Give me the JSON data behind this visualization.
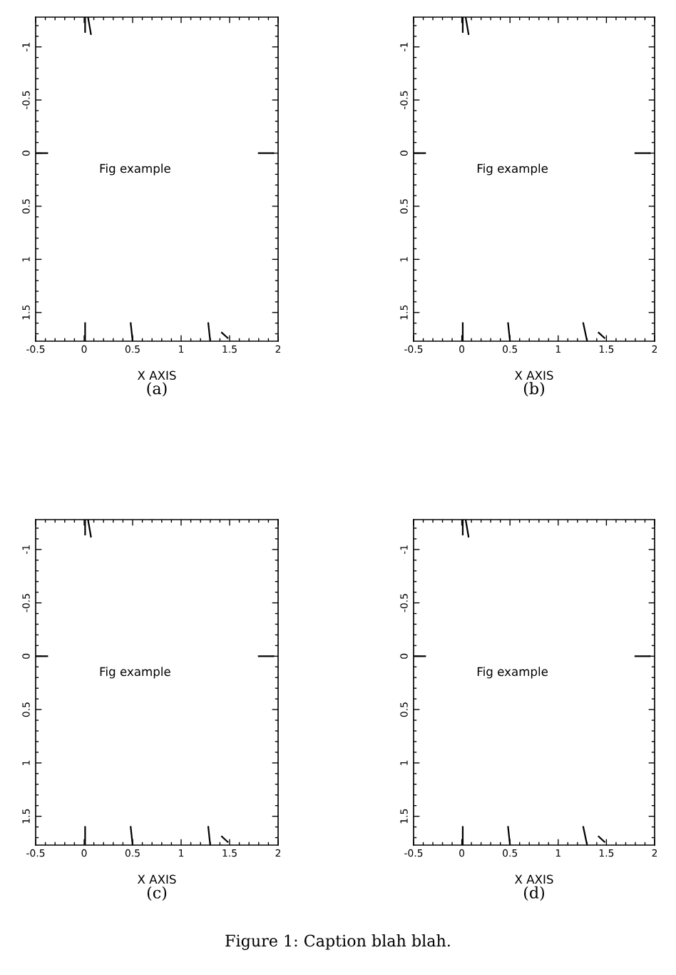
{
  "chart_data": [
    {
      "type": "line",
      "title": "(a)",
      "xlabel": "X AXIS",
      "annotations": [
        "Fig example"
      ],
      "xlim": [
        -0.5,
        2
      ],
      "ylim": [
        1.77,
        -1.28
      ],
      "xticks": [
        -0.5,
        0,
        0.5,
        1,
        1.5,
        2
      ],
      "yticks": [
        -1,
        -0.5,
        0,
        0.5,
        1,
        1.5
      ],
      "grid": false,
      "legend": false,
      "series": [
        {
          "color": "#000000",
          "x": [
            0.01,
            0.01
          ],
          "values": [
            -1.28,
            -1.14
          ]
        },
        {
          "color": "#000000",
          "x": [
            0.04,
            0.07
          ],
          "values": [
            -1.28,
            -1.12
          ]
        },
        {
          "color": "#000000",
          "x": [
            -0.5,
            -0.38
          ],
          "values": [
            0,
            0
          ]
        },
        {
          "color": "#000000",
          "x": [
            1.8,
            1.95
          ],
          "values": [
            0,
            0
          ]
        },
        {
          "color": "#000000",
          "x": [
            0.01,
            0.01
          ],
          "values": [
            1.6,
            1.77
          ]
        },
        {
          "color": "#000000",
          "x": [
            0.48,
            0.5
          ],
          "values": [
            1.6,
            1.77
          ]
        },
        {
          "color": "#000000",
          "x": [
            1.28,
            1.3
          ],
          "values": [
            1.6,
            1.77
          ]
        },
        {
          "color": "#000000",
          "x": [
            1.42,
            1.48
          ],
          "values": [
            1.69,
            1.74
          ]
        }
      ]
    },
    {
      "type": "line",
      "title": "(b)",
      "xlabel": "X AXIS",
      "annotations": [
        "Fig example"
      ],
      "xlim": [
        -0.5,
        2
      ],
      "ylim": [
        1.77,
        -1.28
      ],
      "xticks": [
        -0.5,
        0,
        0.5,
        1,
        1.5,
        2
      ],
      "yticks": [
        -1,
        -0.5,
        0,
        0.5,
        1,
        1.5
      ],
      "grid": false,
      "legend": false,
      "series": [
        {
          "color": "#000000",
          "x": [
            0.01,
            0.01
          ],
          "values": [
            -1.28,
            -1.14
          ]
        },
        {
          "color": "#000000",
          "x": [
            0.04,
            0.07
          ],
          "values": [
            -1.28,
            -1.12
          ]
        },
        {
          "color": "#000000",
          "x": [
            -0.5,
            -0.38
          ],
          "values": [
            0,
            0
          ]
        },
        {
          "color": "#000000",
          "x": [
            1.8,
            1.95
          ],
          "values": [
            0,
            0
          ]
        },
        {
          "color": "#000000",
          "x": [
            0.01,
            0.01
          ],
          "values": [
            1.6,
            1.77
          ]
        },
        {
          "color": "#000000",
          "x": [
            0.48,
            0.5
          ],
          "values": [
            1.6,
            1.77
          ]
        },
        {
          "color": "#000000",
          "x": [
            1.26,
            1.3
          ],
          "values": [
            1.6,
            1.77
          ]
        },
        {
          "color": "#000000",
          "x": [
            1.42,
            1.48
          ],
          "values": [
            1.69,
            1.74
          ]
        }
      ]
    },
    {
      "type": "line",
      "title": "(c)",
      "xlabel": "X AXIS",
      "annotations": [
        "Fig example"
      ],
      "xlim": [
        -0.5,
        2
      ],
      "ylim": [
        1.77,
        -1.28
      ],
      "xticks": [
        -0.5,
        0,
        0.5,
        1,
        1.5,
        2
      ],
      "yticks": [
        -1,
        -0.5,
        0,
        0.5,
        1,
        1.5
      ],
      "grid": false,
      "legend": false,
      "series": [
        {
          "color": "#000000",
          "x": [
            0.01,
            0.01
          ],
          "values": [
            -1.28,
            -1.14
          ]
        },
        {
          "color": "#000000",
          "x": [
            0.04,
            0.07
          ],
          "values": [
            -1.28,
            -1.12
          ]
        },
        {
          "color": "#000000",
          "x": [
            -0.5,
            -0.38
          ],
          "values": [
            0,
            0
          ]
        },
        {
          "color": "#000000",
          "x": [
            1.8,
            1.95
          ],
          "values": [
            0,
            0
          ]
        },
        {
          "color": "#000000",
          "x": [
            0.01,
            0.01
          ],
          "values": [
            1.6,
            1.77
          ]
        },
        {
          "color": "#000000",
          "x": [
            0.48,
            0.5
          ],
          "values": [
            1.6,
            1.77
          ]
        },
        {
          "color": "#000000",
          "x": [
            1.28,
            1.3
          ],
          "values": [
            1.6,
            1.77
          ]
        },
        {
          "color": "#000000",
          "x": [
            1.42,
            1.48
          ],
          "values": [
            1.69,
            1.74
          ]
        }
      ]
    },
    {
      "type": "line",
      "title": "(d)",
      "xlabel": "X AXIS",
      "annotations": [
        "Fig example",
        "Figure 1: Caption blah blah."
      ],
      "xlim": [
        -0.5,
        2
      ],
      "ylim": [
        1.77,
        -1.28
      ],
      "xticks": [
        -0.5,
        0,
        0.5,
        1,
        1.5,
        2
      ],
      "yticks": [
        -1,
        -0.5,
        0,
        0.5,
        1,
        1.5
      ],
      "grid": false,
      "legend": false,
      "series": [
        {
          "color": "#000000",
          "x": [
            0.01,
            0.01
          ],
          "values": [
            -1.28,
            -1.14
          ]
        },
        {
          "color": "#000000",
          "x": [
            0.04,
            0.07
          ],
          "values": [
            -1.28,
            -1.12
          ]
        },
        {
          "color": "#000000",
          "x": [
            -0.5,
            -0.38
          ],
          "values": [
            0,
            0
          ]
        },
        {
          "color": "#000000",
          "x": [
            1.8,
            1.95
          ],
          "values": [
            0,
            0
          ]
        },
        {
          "color": "#000000",
          "x": [
            0.01,
            0.01
          ],
          "values": [
            1.6,
            1.77
          ]
        },
        {
          "color": "#000000",
          "x": [
            0.48,
            0.5
          ],
          "values": [
            1.6,
            1.77
          ]
        },
        {
          "color": "#000000",
          "x": [
            1.26,
            1.3
          ],
          "values": [
            1.6,
            1.77
          ]
        },
        {
          "color": "#000000",
          "x": [
            1.42,
            1.48
          ],
          "values": [
            1.69,
            1.74
          ]
        }
      ]
    }
  ]
}
